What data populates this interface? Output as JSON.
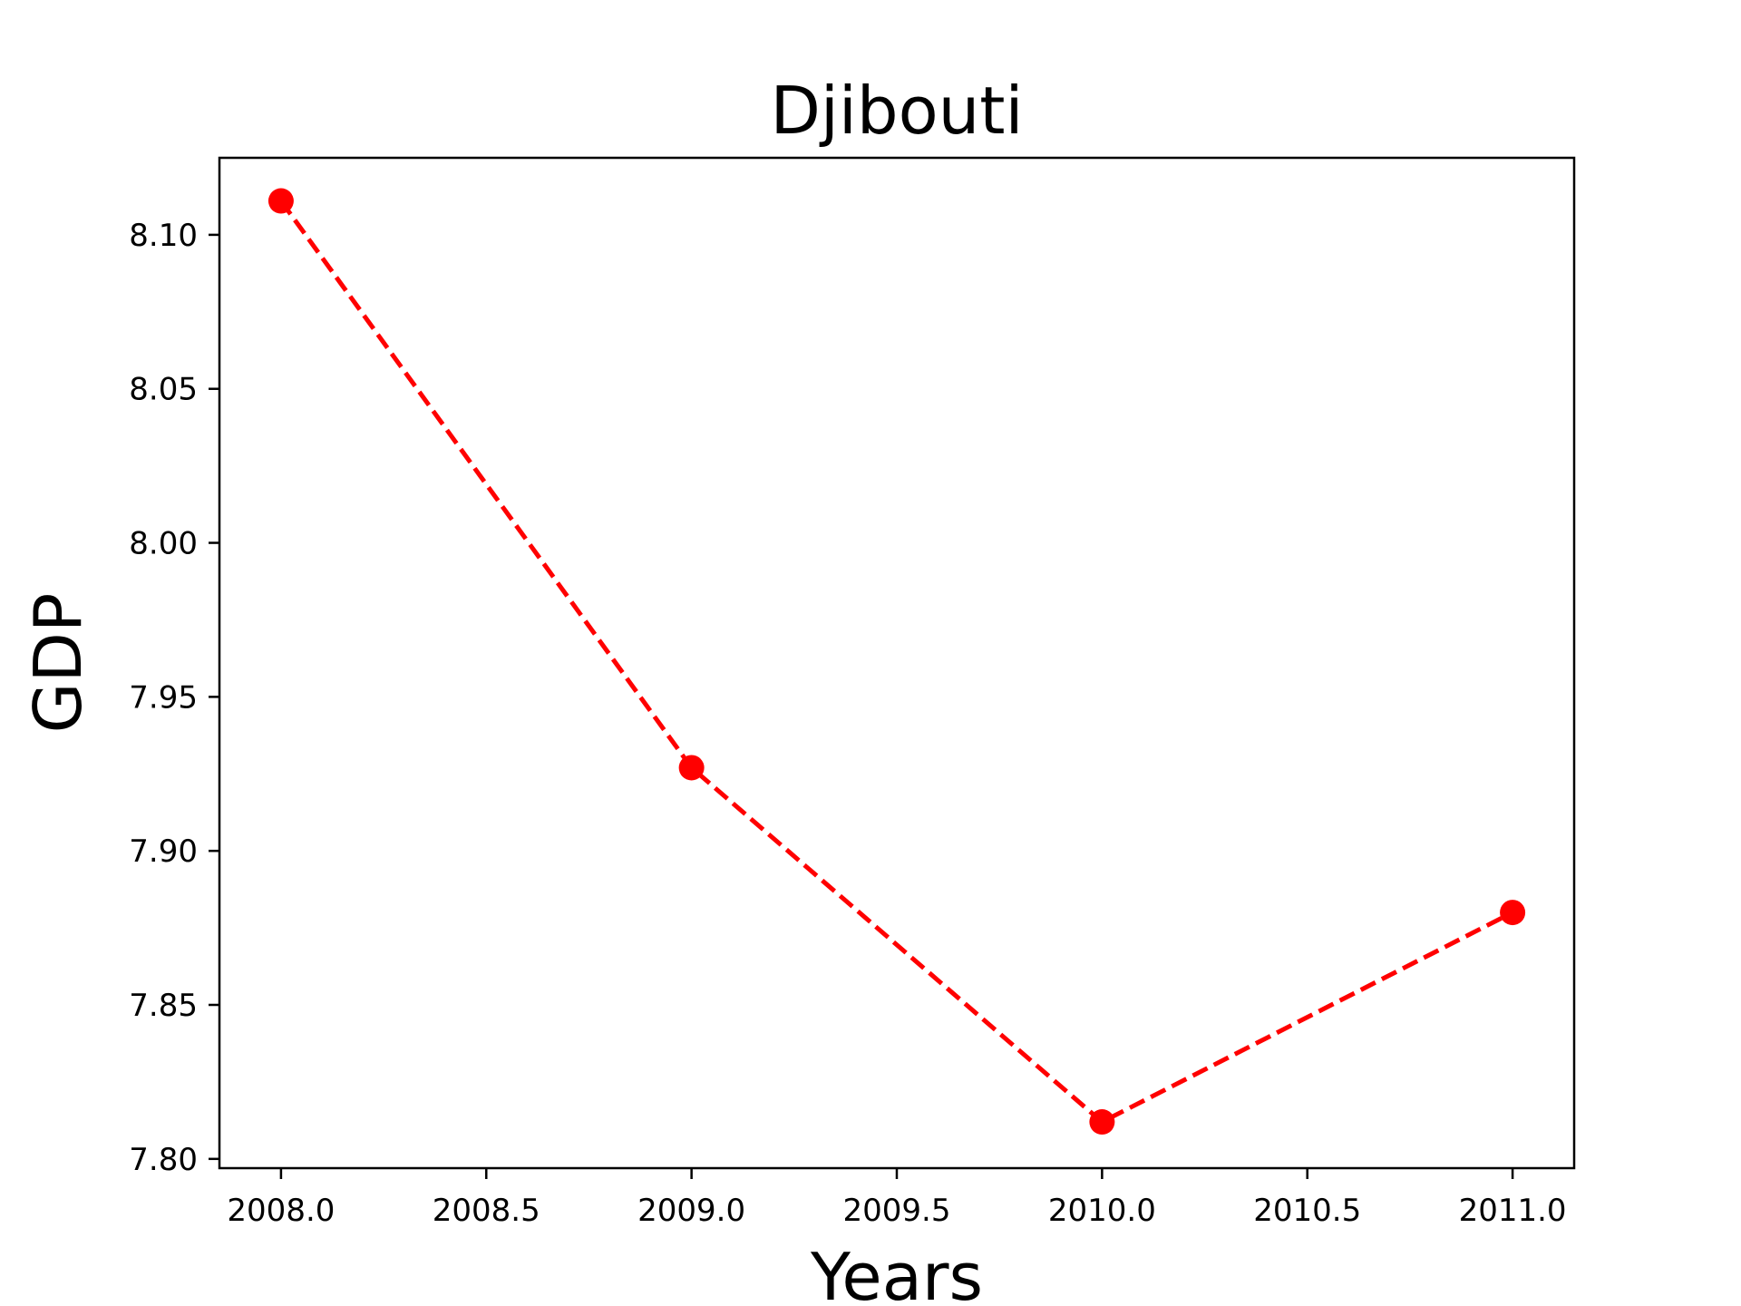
{
  "chart_data": {
    "type": "line",
    "title": "Djibouti",
    "xlabel": "Years",
    "ylabel": "GDP",
    "xlim": [
      1937.85,
      2011.15
    ],
    "ylim": [
      7.797,
      8.125
    ],
    "grid": false,
    "x_ticks": [
      "2008.0",
      "2008.5",
      "2009.0",
      "2009.5",
      "2010.0",
      "2010.5",
      "2011.0"
    ],
    "y_ticks": [
      "7.80",
      "7.85",
      "7.90",
      "7.95",
      "8.00",
      "8.05",
      "8.10"
    ],
    "series": [
      {
        "color": "#ff0000",
        "line_style": "dashed",
        "marker": "circle",
        "x": [
          2008,
          2009,
          2010,
          2011
        ],
        "y": [
          8.111,
          7.927,
          7.812,
          7.88
        ]
      }
    ]
  }
}
